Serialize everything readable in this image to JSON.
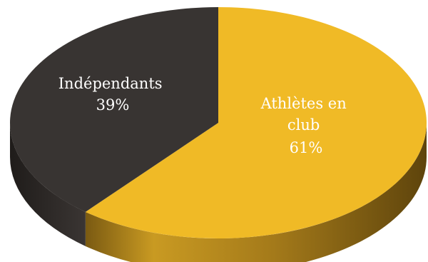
{
  "chart_data": {
    "type": "pie",
    "three_d": true,
    "title": "",
    "slices": [
      {
        "label_lines": [
          "Athlètes en",
          "club"
        ],
        "value": 61,
        "value_text": "61%",
        "color": "#F0BA26",
        "side_color": "#8F6A14"
      },
      {
        "label_lines": [
          "Indépendants"
        ],
        "value": 39,
        "value_text": "39%",
        "color": "#383432",
        "side_color": "#2A2624"
      }
    ],
    "start_at": "top, clockwise",
    "legend": "none"
  }
}
